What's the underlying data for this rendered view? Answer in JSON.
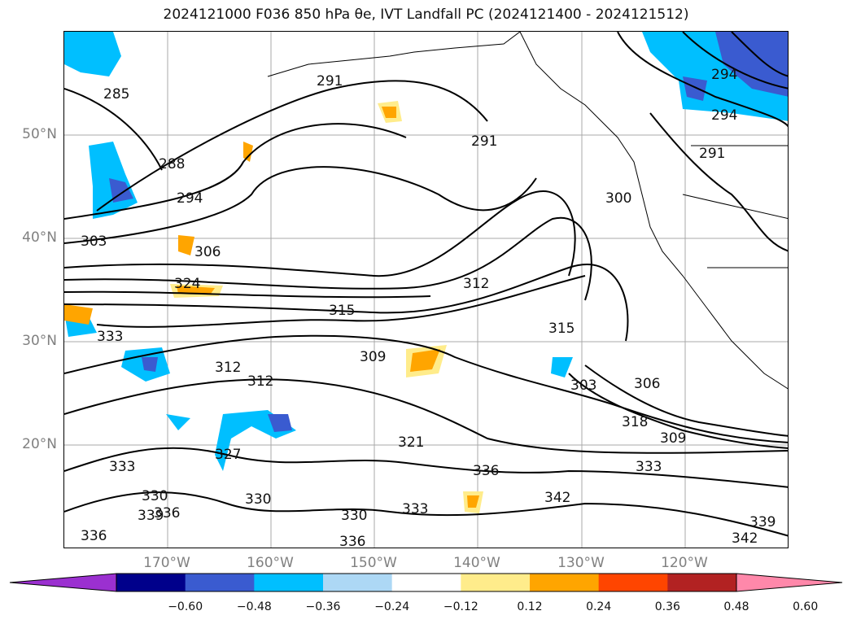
{
  "title": "2024121000 F036 850 hPa θe, IVT Landfall PC (2024121400 - 2024121512)",
  "lat_labels": [
    "50°N",
    "40°N",
    "30°N",
    "20°N"
  ],
  "lon_labels": [
    "170°W",
    "160°W",
    "150°W",
    "140°W",
    "130°W",
    "120°W"
  ],
  "contour_labels": [
    "285",
    "291",
    "288",
    "294",
    "303",
    "306",
    "324",
    "315",
    "312",
    "312",
    "309",
    "291",
    "300",
    "312",
    "315",
    "303",
    "306",
    "318",
    "309",
    "333",
    "321",
    "336",
    "342",
    "330",
    "330",
    "339",
    "336",
    "336",
    "333",
    "333",
    "327",
    "330",
    "294",
    "291",
    "294",
    "342",
    "339",
    "333",
    "336"
  ],
  "colorbar": {
    "tick_labels": [
      "−0.60",
      "−0.48",
      "−0.36",
      "−0.24",
      "−0.12",
      "0.12",
      "0.24",
      "0.36",
      "0.48",
      "0.60"
    ],
    "colors": [
      "#9b30d0",
      "#00008b",
      "#3a5bd0",
      "#00bfff",
      "#add8f5",
      "#ffffff",
      "#ffec8b",
      "#ffa500",
      "#ff4500",
      "#b22222",
      "#ff88aa"
    ]
  },
  "colors": {
    "contour": "#000000",
    "grid": "#a9a9a9",
    "axis_label": "#808080"
  }
}
